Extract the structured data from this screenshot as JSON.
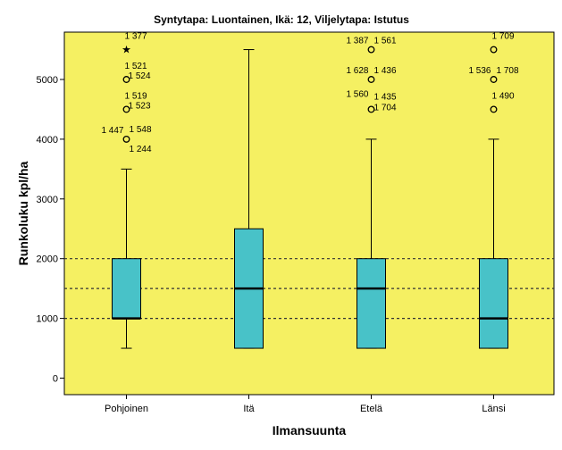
{
  "chart_data": {
    "type": "boxplot",
    "title": "Syntytapa: Luontainen, Ikä: 12, Viljelytapa: Istutus",
    "xlabel": "Ilmansuunta",
    "ylabel": "Runkoluku kpl/ha",
    "ylim": [
      -200,
      5800
    ],
    "yticks": [
      0,
      1000,
      2000,
      3000,
      4000,
      5000
    ],
    "reference_lines": [
      1000,
      1500,
      2000
    ],
    "colors": {
      "plot_background": "#f5f062",
      "box_fill": "#48c2c8",
      "reference_line": "#333333"
    },
    "categories": [
      "Pohjoinen",
      "Itä",
      "Etelä",
      "Länsi"
    ],
    "boxes": [
      {
        "category": "Pohjoinen",
        "whisker_low": 500,
        "q1": 1000,
        "median": 1000,
        "q3": 2000,
        "whisker_high": 3500,
        "outliers": [
          {
            "value": 5500,
            "marker": "star",
            "labels": [
              "1 377"
            ]
          },
          {
            "value": 5000,
            "marker": "circle",
            "labels": [
              "1 521",
              "1 524"
            ]
          },
          {
            "value": 4500,
            "marker": "circle",
            "labels": [
              "1 519",
              "1 523"
            ]
          },
          {
            "value": 4000,
            "marker": "circle",
            "labels": [
              "1 447",
              "1 548",
              "1 244"
            ]
          }
        ]
      },
      {
        "category": "Itä",
        "whisker_low": 500,
        "q1": 500,
        "median": 1500,
        "q3": 2500,
        "whisker_high": 5500,
        "outliers": []
      },
      {
        "category": "Etelä",
        "whisker_low": 500,
        "q1": 500,
        "median": 1500,
        "q3": 2000,
        "whisker_high": 4000,
        "outliers": [
          {
            "value": 5500,
            "marker": "circle",
            "labels": [
              "1 387",
              "1 561"
            ]
          },
          {
            "value": 5000,
            "marker": "circle",
            "labels": [
              "1 628",
              "1 436"
            ]
          },
          {
            "value": 4500,
            "marker": "circle",
            "labels": [
              "1 560",
              "1 435",
              "1 704"
            ]
          }
        ]
      },
      {
        "category": "Länsi",
        "whisker_low": 500,
        "q1": 500,
        "median": 1000,
        "q3": 2000,
        "whisker_high": 4000,
        "outliers": [
          {
            "value": 5500,
            "marker": "circle",
            "labels": [
              "1 709"
            ]
          },
          {
            "value": 5000,
            "marker": "circle",
            "labels": [
              "1 536",
              "1 708"
            ]
          },
          {
            "value": 4500,
            "marker": "circle",
            "labels": [
              "1 490"
            ]
          }
        ]
      }
    ]
  }
}
